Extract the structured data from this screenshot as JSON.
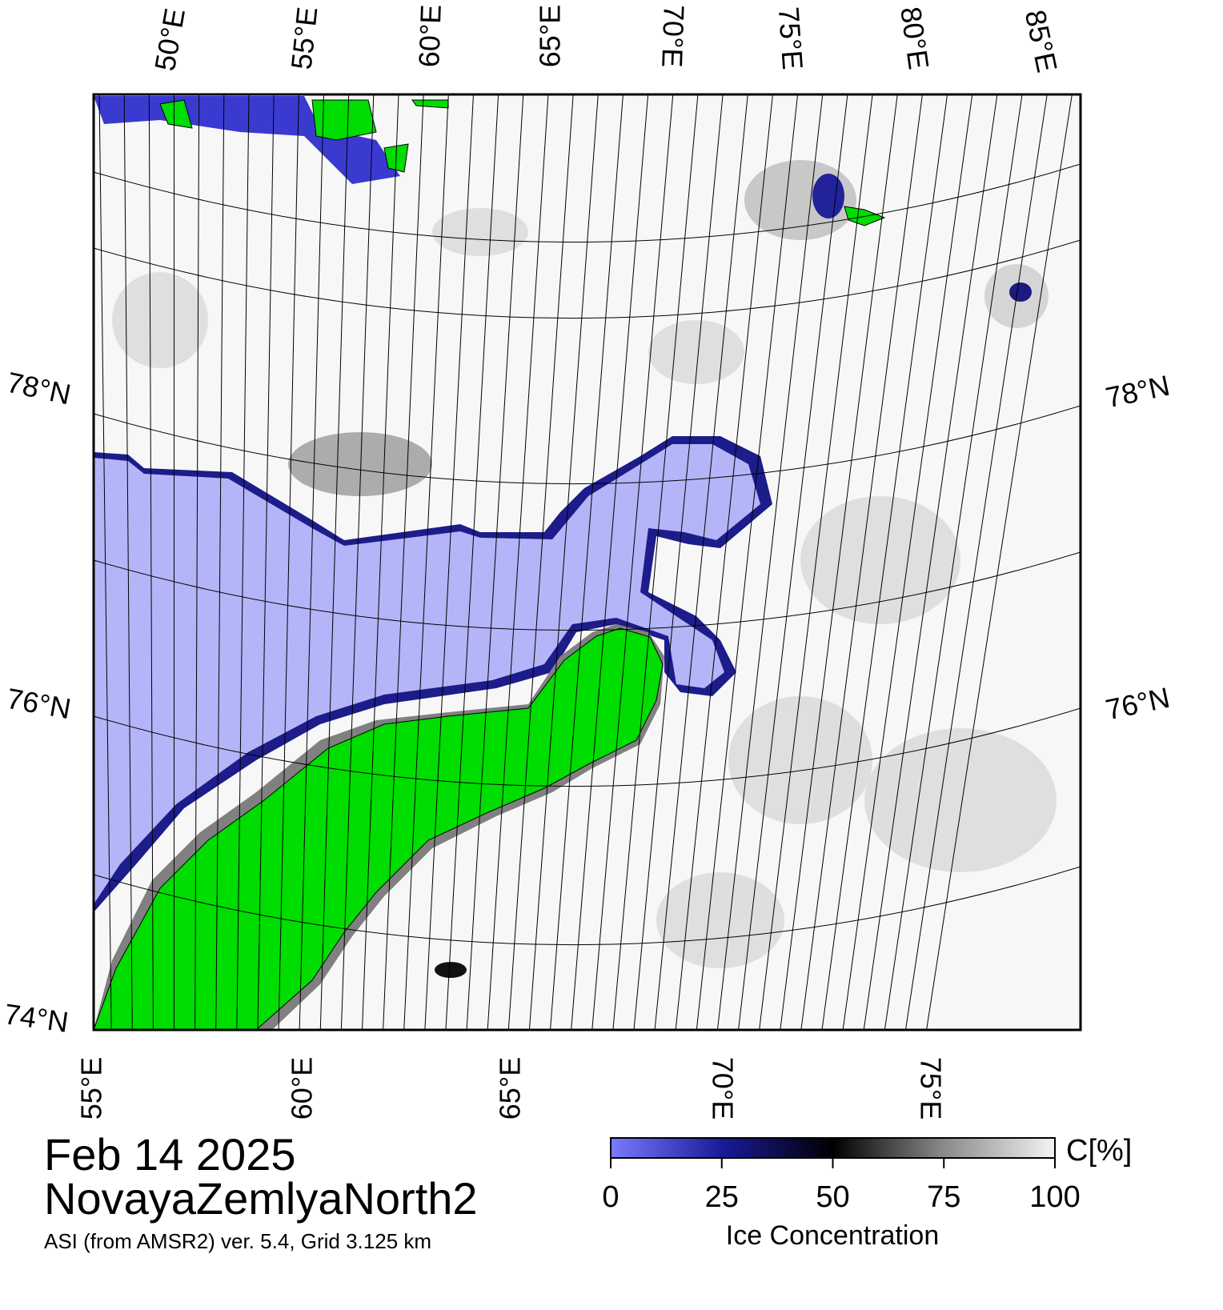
{
  "map": {
    "top_lon_labels": [
      "50°E",
      "55°E",
      "60°E",
      "65°E",
      "70°E",
      "75°E",
      "80°E",
      "85°E"
    ],
    "bottom_lon_labels": [
      "55°E",
      "60°E",
      "65°E",
      "70°E",
      "75°E"
    ],
    "left_lat_labels": [
      "78°N",
      "76°N",
      "74°N"
    ],
    "right_lat_labels": [
      "78°N",
      "76°N"
    ]
  },
  "date": "Feb 14 2025",
  "region": "NovayaZemlyaNorth2",
  "source": "ASI (from AMSR2) ver. 5.4,  Grid 3.125 km",
  "colorbar": {
    "label": "Ice Concentration",
    "unit": "C[%]",
    "range": [
      0,
      100
    ],
    "ticks": [
      0,
      25,
      50,
      75,
      100
    ]
  }
}
